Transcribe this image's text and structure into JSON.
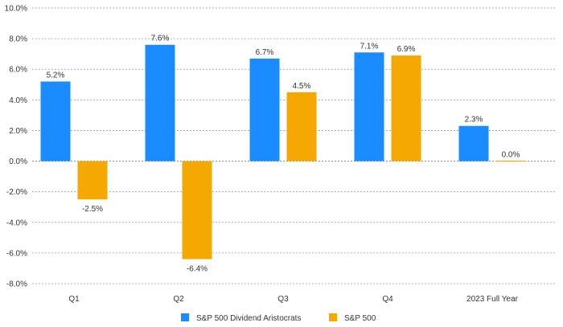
{
  "chart_data": {
    "type": "bar",
    "title": "",
    "xlabel": "",
    "ylabel": "",
    "categories": [
      "Q1",
      "Q2",
      "Q3",
      "Q4",
      "2023 Full Year"
    ],
    "series": [
      {
        "name": "S&P 500 Dividend Aristocrats",
        "color": "#1a8cff",
        "values": [
          5.2,
          7.6,
          6.7,
          7.1,
          2.3
        ],
        "labels": [
          "5.2%",
          "7.6%",
          "6.7%",
          "7.1%",
          "2.3%"
        ]
      },
      {
        "name": "S&P 500",
        "color": "#f5a800",
        "values": [
          -2.5,
          -6.4,
          4.5,
          6.9,
          0.0
        ],
        "labels": [
          "-2.5%",
          "-6.4%",
          "4.5%",
          "6.9%",
          "0.0%"
        ]
      }
    ],
    "ylim": [
      -8,
      10
    ],
    "yticks": [
      10,
      8,
      6,
      4,
      2,
      0,
      -2,
      -4,
      -6,
      -8
    ],
    "ytick_labels": [
      "10.0%",
      "8.0%",
      "6.0%",
      "4.0%",
      "2.0%",
      "0.0%",
      "-2.0%",
      "-4.0%",
      "-6.0%",
      "-8.0%"
    ],
    "grid": "horizontal dashed",
    "legend_position": "bottom-center"
  }
}
